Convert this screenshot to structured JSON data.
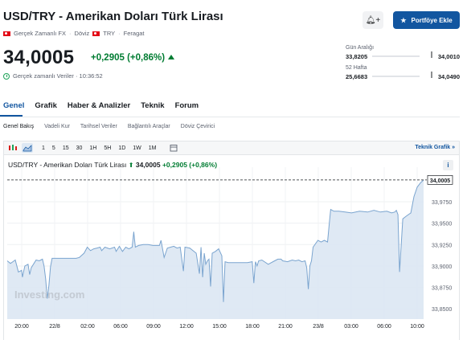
{
  "header": {
    "title": "USD/TRY - Amerikan Doları Türk Lirası",
    "meta_realtime": "Gerçek Zamanlı FX",
    "meta_type": "Döviz",
    "meta_currency": "TRY",
    "meta_source": "Feragat",
    "price": "34,0005",
    "change": "+0,2905 (+0,86%)",
    "realtime_label": "Gerçek zamanlı Veriler · 10:36:52",
    "alert_icon": "bell-plus-icon",
    "portfolio_button": "Portföye Ekle",
    "accent_color": "#1256a0",
    "up_color": "#007c32"
  },
  "ranges": {
    "day_label": "Gün Aralığı",
    "day_low": "33,8205",
    "day_high": "34,0010",
    "week52_label": "52 Hafta",
    "week52_low": "25,6683",
    "week52_high": "34,0490"
  },
  "tabs": [
    "Genel",
    "Grafik",
    "Haber & Analizler",
    "Teknik",
    "Forum"
  ],
  "subtabs": [
    "Genel Bakış",
    "Vadeli Kur",
    "Tarihsel Veriler",
    "Bağlantılı Araçlar",
    "Döviz Çevirici"
  ],
  "toolbar": {
    "periods": [
      "1",
      "5",
      "15",
      "30",
      "1H",
      "5H",
      "1D",
      "1W",
      "1M"
    ],
    "technical_chart": "Teknik Grafik »"
  },
  "chart_header": {
    "name": "USD/TRY - Amerikan Doları Türk Lirası",
    "price": "34,0005",
    "change": "+0,2905",
    "change_pct": "(+0,86%)"
  },
  "watermark": "Investing.com",
  "chart_data": {
    "type": "area",
    "title": "USD/TRY - Amerikan Doları Türk Lirası",
    "xlabel": "",
    "ylabel": "",
    "x_ticks": [
      "20:00",
      "22/8",
      "02:00",
      "06:00",
      "09:00",
      "12:00",
      "15:00",
      "18:00",
      "21:00",
      "23/8",
      "03:00",
      "06:00",
      "10:00"
    ],
    "y_ticks": [
      "34,0005",
      "33,9750",
      "33,9500",
      "33,9250",
      "33,9000",
      "33,8750",
      "33,8500"
    ],
    "ylim": [
      33.838,
      34.006
    ],
    "last_value": 34.0005,
    "grid": true,
    "x": [
      0,
      4,
      7,
      10,
      14,
      18,
      19,
      22,
      26,
      28,
      30,
      36,
      40,
      44,
      46,
      48,
      50,
      52,
      54,
      56,
      60,
      64,
      70,
      74,
      80,
      86,
      90,
      96,
      100,
      104,
      108,
      112,
      116,
      118,
      122,
      128,
      134,
      136,
      140,
      144,
      148,
      152,
      156,
      158,
      160,
      164,
      170,
      176,
      182,
      190,
      192,
      196,
      200,
      204,
      208,
      212,
      216,
      220,
      222,
      228,
      236,
      240,
      242,
      244,
      246,
      248,
      250,
      252,
      254,
      256,
      260,
      264,
      268,
      270,
      272,
      276,
      282,
      290,
      300,
      306,
      308,
      310,
      312,
      314,
      318,
      326,
      334,
      338,
      342,
      344,
      350,
      356,
      360,
      364,
      368,
      372,
      374,
      376,
      378,
      380,
      382,
      388,
      392,
      396,
      400,
      402,
      404,
      408,
      414,
      422,
      430,
      440,
      450,
      458,
      466,
      474,
      480,
      484,
      486,
      488,
      490,
      494,
      498,
      504,
      508,
      512,
      516,
      520
    ],
    "values": [
      33.906,
      33.903,
      33.905,
      33.907,
      33.893,
      33.895,
      33.887,
      33.9,
      33.902,
      33.89,
      33.898,
      33.907,
      33.906,
      33.908,
      33.9,
      33.885,
      33.862,
      33.877,
      33.899,
      33.909,
      33.909,
      33.909,
      33.909,
      33.909,
      33.909,
      33.909,
      33.91,
      33.915,
      33.922,
      33.918,
      33.92,
      33.921,
      33.922,
      33.918,
      33.922,
      33.92,
      33.922,
      33.917,
      33.923,
      33.917,
      33.922,
      33.92,
      33.922,
      33.94,
      33.922,
      33.924,
      33.925,
      33.925,
      33.924,
      33.924,
      33.93,
      33.91,
      33.921,
      33.922,
      33.923,
      33.921,
      33.922,
      33.894,
      33.922,
      33.921,
      33.915,
      33.891,
      33.922,
      33.887,
      33.915,
      33.902,
      33.906,
      33.908,
      33.876,
      33.915,
      33.917,
      33.92,
      33.912,
      33.858,
      33.905,
      33.904,
      33.904,
      33.904,
      33.904,
      33.905,
      33.88,
      33.905,
      33.9,
      33.906,
      33.907,
      33.902,
      33.906,
      33.908,
      33.908,
      33.906,
      33.905,
      33.907,
      33.906,
      33.907,
      33.905,
      33.906,
      33.898,
      33.873,
      33.9,
      33.906,
      33.922,
      33.93,
      33.928,
      33.93,
      33.928,
      33.948,
      33.966,
      33.964,
      33.964,
      33.963,
      33.962,
      33.964,
      33.963,
      33.965,
      33.963,
      33.964,
      33.962,
      33.963,
      33.965,
      33.96,
      33.893,
      33.955,
      33.958,
      33.962,
      33.981,
      33.992,
      33.997,
      34.0005
    ]
  }
}
